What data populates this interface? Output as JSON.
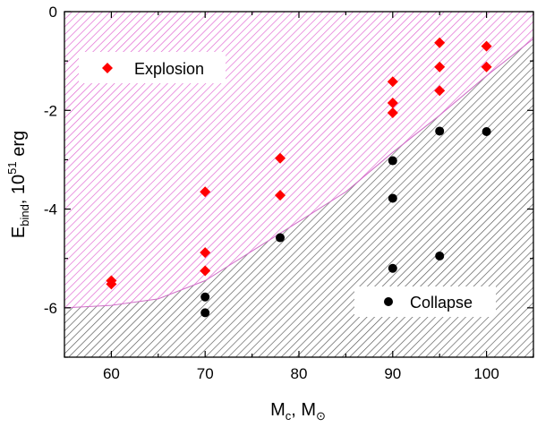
{
  "chart_data": {
    "type": "scatter",
    "title": "",
    "xlabel": {
      "main": "M",
      "sub": "c",
      "sep": ", ",
      "unit_main": "M",
      "unit_sub": "⊙"
    },
    "ylabel": {
      "main": "E",
      "sub": "bind",
      "sep": ", ",
      "base": "10",
      "exp": "51",
      "unit": " erg"
    },
    "xlim": [
      55,
      105
    ],
    "ylim": [
      -7,
      0
    ],
    "x_ticks": [
      60,
      70,
      80,
      90,
      100
    ],
    "y_ticks": [
      0,
      -2,
      -4,
      -6
    ],
    "series": [
      {
        "name": "Explosion",
        "marker": "diamond",
        "color": "#ff0000",
        "points": [
          [
            60,
            -5.45
          ],
          [
            60,
            -5.52
          ],
          [
            70,
            -3.65
          ],
          [
            70,
            -4.88
          ],
          [
            70,
            -5.25
          ],
          [
            78,
            -2.97
          ],
          [
            78,
            -3.72
          ],
          [
            90,
            -1.42
          ],
          [
            90,
            -1.85
          ],
          [
            90,
            -2.05
          ],
          [
            95,
            -0.63
          ],
          [
            95,
            -1.12
          ],
          [
            95,
            -1.6
          ],
          [
            100,
            -0.7
          ],
          [
            100,
            -1.12
          ]
        ]
      },
      {
        "name": "Collapse",
        "marker": "circle",
        "color": "#000000",
        "points": [
          [
            70,
            -5.78
          ],
          [
            70,
            -6.1
          ],
          [
            78,
            -4.58
          ],
          [
            90,
            -3.02
          ],
          [
            90,
            -3.78
          ],
          [
            90,
            -5.2
          ],
          [
            95,
            -2.42
          ],
          [
            95,
            -4.95
          ],
          [
            100,
            -2.43
          ]
        ]
      }
    ],
    "regions": [
      {
        "name": "explosion-region",
        "color": "#e060d0"
      },
      {
        "name": "collapse-region",
        "color": "#555555"
      }
    ],
    "boundary": [
      [
        55,
        -6.0
      ],
      [
        60,
        -5.95
      ],
      [
        65,
        -5.82
      ],
      [
        70,
        -5.45
      ],
      [
        75,
        -4.85
      ],
      [
        80,
        -4.25
      ],
      [
        85,
        -3.65
      ],
      [
        90,
        -2.85
      ],
      [
        95,
        -2.1
      ],
      [
        100,
        -1.3
      ],
      [
        105,
        -0.55
      ]
    ],
    "legend": [
      {
        "label": "Explosion",
        "position": "top-left"
      },
      {
        "label": "Collapse",
        "position": "bottom-right"
      }
    ]
  }
}
